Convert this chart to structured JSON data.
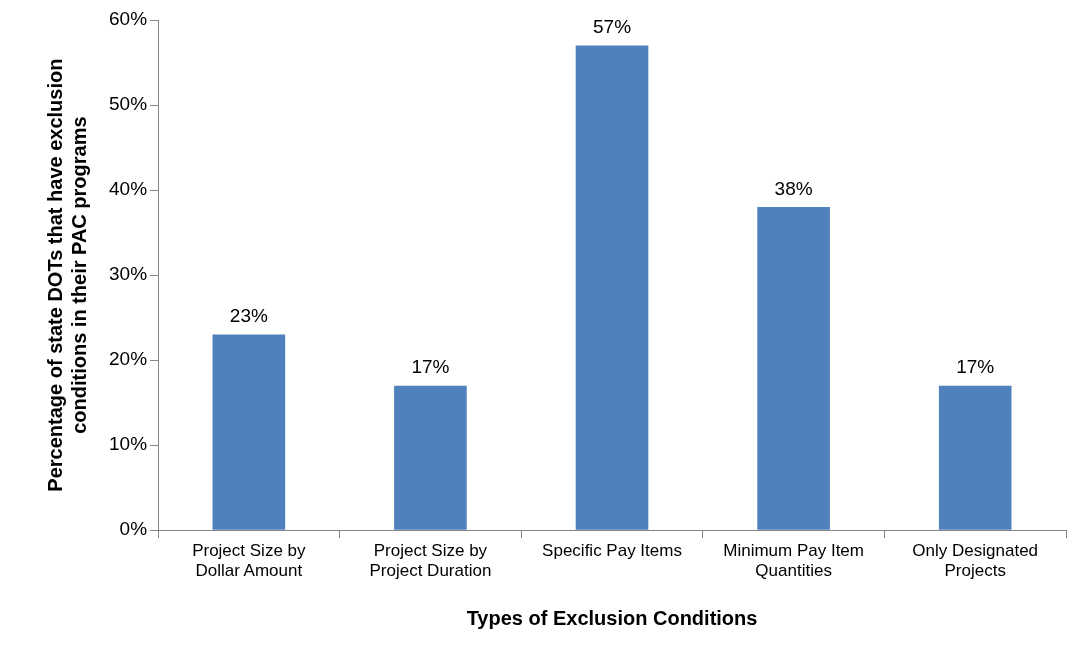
{
  "chart_data": {
    "type": "bar",
    "xlabel": "Types of Exclusion Conditions",
    "ylabel": "Percentage of state DOTs that have exclusion conditions in their PAC programs",
    "categories": [
      "Project Size by Dollar Amount",
      "Project Size by Project Duration",
      "Specific Pay Items",
      "Minimum Pay Item Quantities",
      "Only Designated Projects"
    ],
    "values": [
      23,
      17,
      57,
      38,
      17
    ],
    "value_labels": [
      "23%",
      "17%",
      "57%",
      "38%",
      "17%"
    ],
    "color": "#4f81bd",
    "ylim": [
      0,
      60
    ],
    "yticks": [
      {
        "value": 0,
        "label": "0%"
      },
      {
        "value": 10,
        "label": "10%"
      },
      {
        "value": 20,
        "label": "20%"
      },
      {
        "value": 30,
        "label": "30%"
      },
      {
        "value": 40,
        "label": "40%"
      },
      {
        "value": 50,
        "label": "50%"
      },
      {
        "value": 60,
        "label": "60%"
      }
    ],
    "grid": false,
    "legend": false
  }
}
